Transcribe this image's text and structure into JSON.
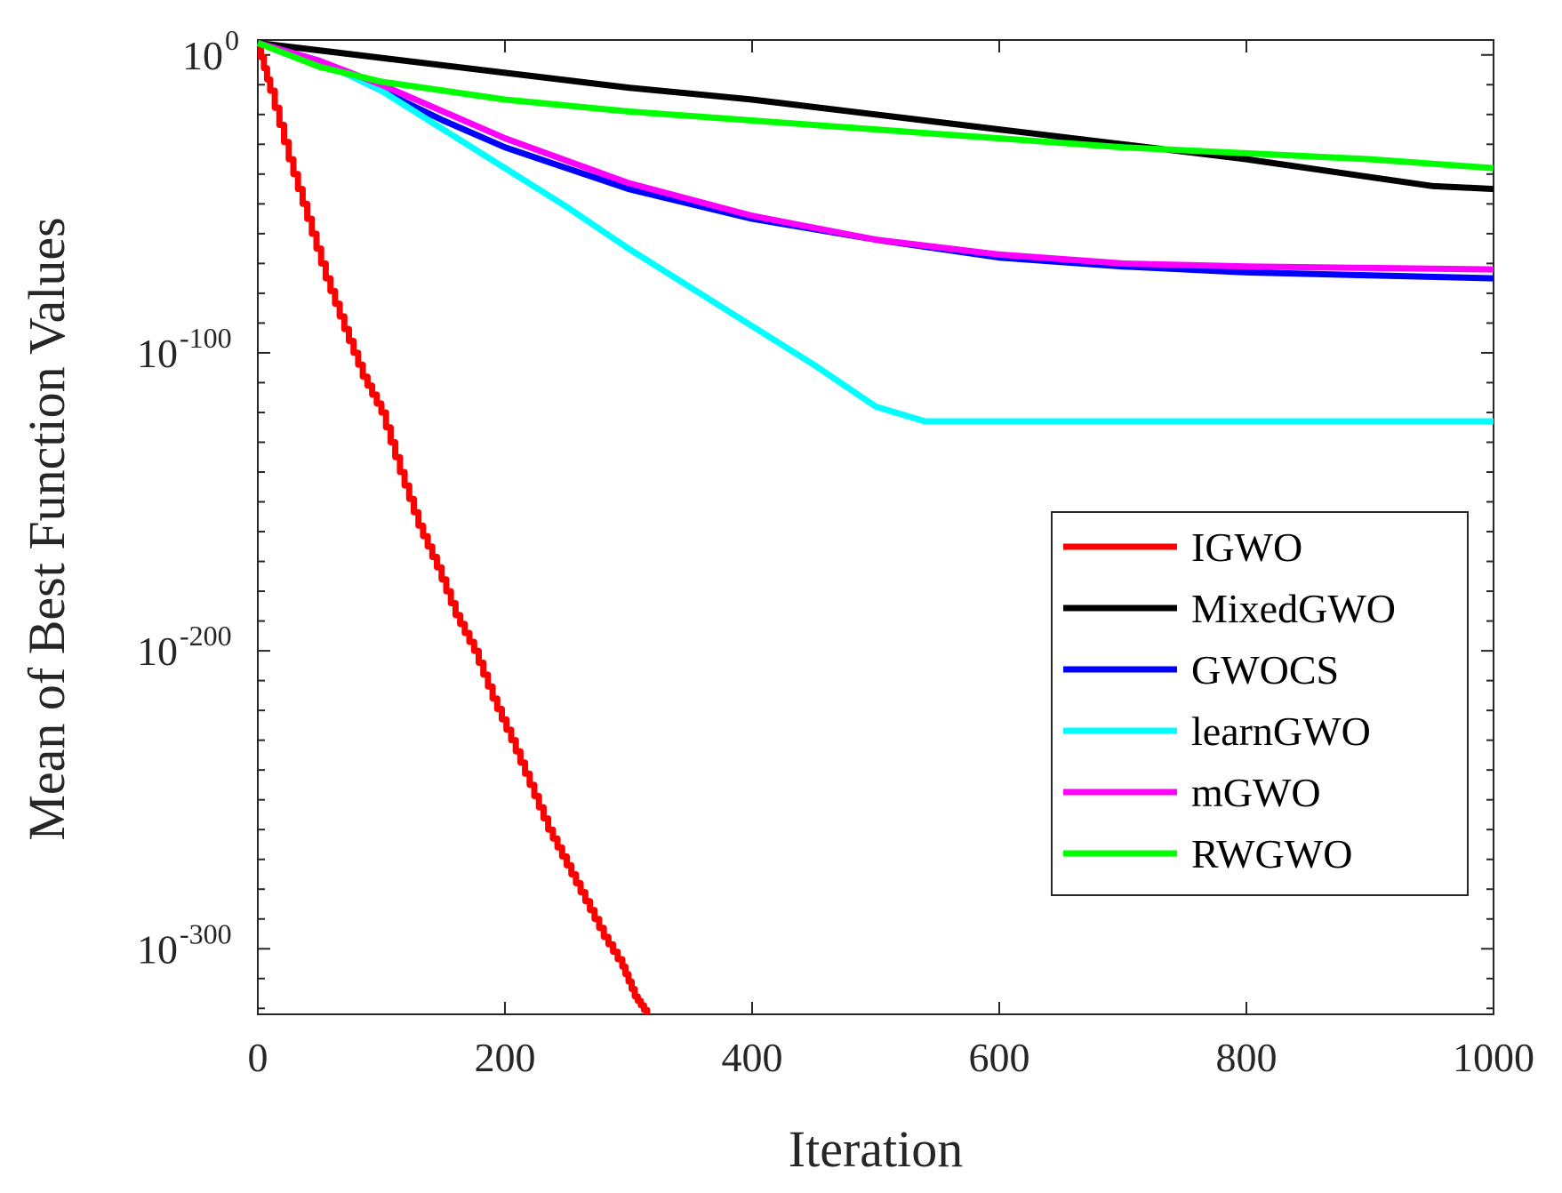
{
  "chart_data": {
    "type": "line",
    "title": "",
    "xlabel": "Iteration",
    "ylabel": "Mean of Best Function Values",
    "xlim": [
      0,
      1000
    ],
    "ylim_log10": [
      -322,
      5
    ],
    "y_scale": "log",
    "x_ticks": [
      {
        "value": 0,
        "label": "0"
      },
      {
        "value": 200,
        "label": "200"
      },
      {
        "value": 400,
        "label": "400"
      },
      {
        "value": 600,
        "label": "600"
      },
      {
        "value": 800,
        "label": "800"
      },
      {
        "value": 1000,
        "label": "1000"
      }
    ],
    "y_ticks": [
      {
        "log10": 0,
        "base": "10",
        "exp": "0"
      },
      {
        "log10": -100,
        "base": "10",
        "exp": "-100"
      },
      {
        "log10": -200,
        "base": "10",
        "exp": "-200"
      },
      {
        "log10": -300,
        "base": "10",
        "exp": "-300"
      }
    ],
    "grid": false,
    "legend_position": "center-right",
    "series": [
      {
        "name": "IGWO",
        "color": "#ff0000",
        "stepped": true,
        "points": [
          [
            0,
            3
          ],
          [
            10,
            -12
          ],
          [
            25,
            -35
          ],
          [
            40,
            -55
          ],
          [
            55,
            -75
          ],
          [
            70,
            -92
          ],
          [
            85,
            -108
          ],
          [
            100,
            -120
          ],
          [
            115,
            -140
          ],
          [
            130,
            -158
          ],
          [
            145,
            -172
          ],
          [
            160,
            -188
          ],
          [
            175,
            -200
          ],
          [
            190,
            -216
          ],
          [
            205,
            -230
          ],
          [
            220,
            -245
          ],
          [
            235,
            -260
          ],
          [
            250,
            -272
          ],
          [
            265,
            -284
          ],
          [
            280,
            -296
          ],
          [
            295,
            -306
          ],
          [
            305,
            -316
          ],
          [
            315,
            -322
          ]
        ]
      },
      {
        "name": "MixedGWO",
        "color": "#000000",
        "points": [
          [
            0,
            4
          ],
          [
            100,
            -1
          ],
          [
            200,
            -6
          ],
          [
            300,
            -11
          ],
          [
            400,
            -15
          ],
          [
            500,
            -20
          ],
          [
            600,
            -25
          ],
          [
            700,
            -30
          ],
          [
            800,
            -35
          ],
          [
            900,
            -41
          ],
          [
            950,
            -44
          ],
          [
            1000,
            -45
          ]
        ]
      },
      {
        "name": "GWOCS",
        "color": "#0000ff",
        "points": [
          [
            0,
            4
          ],
          [
            50,
            -2
          ],
          [
            100,
            -12
          ],
          [
            150,
            -22
          ],
          [
            200,
            -31
          ],
          [
            300,
            -45
          ],
          [
            400,
            -55
          ],
          [
            500,
            -62
          ],
          [
            600,
            -68
          ],
          [
            700,
            -71
          ],
          [
            800,
            -73
          ],
          [
            900,
            -74
          ],
          [
            1000,
            -75
          ]
        ]
      },
      {
        "name": "learnGWO",
        "color": "#00ffff",
        "points": [
          [
            0,
            4
          ],
          [
            50,
            -2
          ],
          [
            100,
            -12
          ],
          [
            150,
            -25
          ],
          [
            200,
            -38
          ],
          [
            250,
            -51
          ],
          [
            300,
            -65
          ],
          [
            350,
            -78
          ],
          [
            400,
            -91
          ],
          [
            450,
            -104
          ],
          [
            500,
            -118
          ],
          [
            540,
            -123
          ],
          [
            600,
            -123
          ],
          [
            700,
            -123
          ],
          [
            800,
            -123
          ],
          [
            900,
            -123
          ],
          [
            1000,
            -123
          ]
        ]
      },
      {
        "name": "mGWO",
        "color": "#ff00ff",
        "points": [
          [
            0,
            4
          ],
          [
            50,
            -2
          ],
          [
            100,
            -10
          ],
          [
            150,
            -19
          ],
          [
            200,
            -28
          ],
          [
            300,
            -43
          ],
          [
            400,
            -54
          ],
          [
            500,
            -62
          ],
          [
            600,
            -67
          ],
          [
            700,
            -70
          ],
          [
            800,
            -71
          ],
          [
            900,
            -71.5
          ],
          [
            1000,
            -72
          ]
        ]
      },
      {
        "name": "RWGWO",
        "color": "#00ff00",
        "points": [
          [
            0,
            4
          ],
          [
            50,
            -4
          ],
          [
            100,
            -9
          ],
          [
            200,
            -15
          ],
          [
            300,
            -19
          ],
          [
            400,
            -22
          ],
          [
            500,
            -25
          ],
          [
            600,
            -28
          ],
          [
            700,
            -31
          ],
          [
            800,
            -33
          ],
          [
            900,
            -35
          ],
          [
            1000,
            -38
          ]
        ]
      }
    ]
  }
}
